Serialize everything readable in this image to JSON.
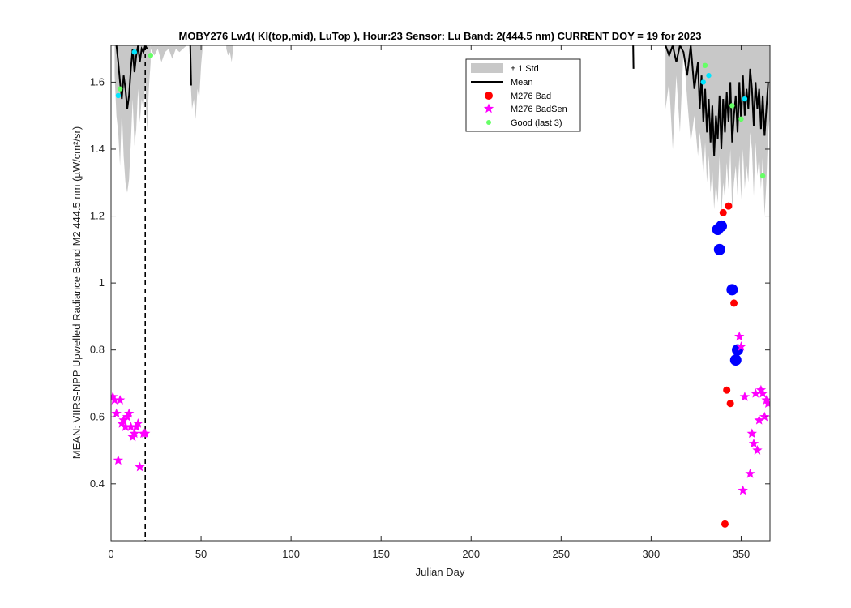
{
  "chart_data": {
    "type": "scatter",
    "title": "MOBY276   Lw1( Kl(top,mid), LuTop ),   Hour:23 Sensor: Lu Band: 2(444.5 nm)   CURRENT DOY = 19 for 2023",
    "xlabel": "Julian Day",
    "ylabel": "MEAN: VIIRS-NPP Upwelled Radiance Band M2 444.5 nm (µW/cm²/sr)",
    "xlim": [
      0,
      366
    ],
    "ylim": [
      0.23,
      1.71
    ],
    "xticks": [
      0,
      50,
      100,
      150,
      200,
      250,
      300,
      350
    ],
    "yticks": [
      0.4,
      0.6,
      0.8,
      1.0,
      1.2,
      1.4,
      1.6
    ],
    "ytick_labels": [
      "0.4",
      "0.6",
      "0.8",
      "1",
      "1.2",
      "1.4",
      "1.6"
    ],
    "current_doy": 19,
    "grid": false,
    "legend_position": "top-right",
    "legend": [
      "± 1 Std",
      "Mean",
      "M276 Bad",
      "M276 BadSen",
      "Good (last 3)"
    ],
    "colors": {
      "std_band": "#c8c8c8",
      "mean": "#000000",
      "bad": "#ff0000",
      "badsen": "#ff00ff",
      "good": "#66ff66",
      "cyan": "#00e5ff",
      "blue": "#0000ff",
      "vline": "#000000"
    },
    "series": [
      {
        "name": "± 1 Std",
        "kind": "band",
        "segments": [
          {
            "x": [
              2,
              3,
              4,
              5,
              6,
              7,
              8,
              9,
              10,
              11,
              12,
              13,
              14,
              15,
              16,
              17,
              18,
              19,
              20,
              21,
              22
            ],
            "upper": [
              1.71,
              1.71,
              1.71,
              1.71,
              1.71,
              1.71,
              1.71,
              1.71,
              1.71,
              1.71,
              1.71,
              1.71,
              1.71,
              1.71,
              1.71,
              1.71,
              1.71,
              1.71,
              1.71,
              1.71,
              1.71
            ],
            "lower": [
              1.62,
              1.5,
              1.45,
              1.35,
              1.52,
              1.38,
              1.3,
              1.27,
              1.31,
              1.42,
              1.55,
              1.41,
              1.46,
              1.58,
              1.48,
              1.55,
              1.52,
              1.6,
              1.45,
              1.58,
              1.66
            ]
          },
          {
            "x": [
              22,
              24,
              26,
              28,
              30,
              32,
              34,
              36,
              38,
              40,
              42
            ],
            "upper": [
              1.71,
              1.71,
              1.71,
              1.71,
              1.71,
              1.71,
              1.71,
              1.71,
              1.71,
              1.71,
              1.71
            ],
            "lower": [
              1.7,
              1.68,
              1.7,
              1.66,
              1.69,
              1.7,
              1.67,
              1.7,
              1.69,
              1.7,
              1.71
            ]
          },
          {
            "x": [
              44,
              45,
              46,
              47,
              48,
              49,
              50,
              51
            ],
            "upper": [
              1.71,
              1.71,
              1.71,
              1.71,
              1.71,
              1.71,
              1.71,
              1.71
            ],
            "lower": [
              1.62,
              1.52,
              1.55,
              1.49,
              1.58,
              1.55,
              1.65,
              1.71
            ]
          },
          {
            "x": [
              64,
              65,
              66,
              67,
              68
            ],
            "upper": [
              1.71,
              1.71,
              1.71,
              1.71,
              1.71
            ],
            "lower": [
              1.7,
              1.68,
              1.69,
              1.66,
              1.71
            ]
          },
          {
            "x": [
              308,
              310,
              312,
              314,
              316,
              318,
              320,
              322,
              324,
              326,
              327,
              328,
              329,
              330,
              331,
              332,
              333,
              334,
              335,
              336,
              337,
              338,
              339,
              340,
              341,
              342,
              343,
              344,
              345,
              346,
              347,
              348,
              349,
              350,
              351,
              352,
              353,
              354,
              355,
              356,
              357,
              358,
              359,
              360,
              361,
              362,
              363,
              364,
              365,
              366
            ],
            "upper": [
              1.71,
              1.71,
              1.71,
              1.71,
              1.71,
              1.71,
              1.71,
              1.71,
              1.71,
              1.71,
              1.71,
              1.71,
              1.71,
              1.71,
              1.71,
              1.71,
              1.71,
              1.71,
              1.71,
              1.71,
              1.71,
              1.71,
              1.71,
              1.71,
              1.71,
              1.71,
              1.71,
              1.71,
              1.71,
              1.71,
              1.71,
              1.71,
              1.71,
              1.71,
              1.71,
              1.71,
              1.71,
              1.71,
              1.71,
              1.71,
              1.71,
              1.71,
              1.71,
              1.71,
              1.71,
              1.71,
              1.71,
              1.71,
              1.71,
              1.71
            ],
            "lower": [
              1.52,
              1.6,
              1.4,
              1.62,
              1.45,
              1.7,
              1.55,
              1.42,
              1.5,
              1.38,
              1.45,
              1.4,
              1.32,
              1.42,
              1.3,
              1.38,
              1.27,
              1.34,
              1.22,
              1.3,
              1.24,
              1.38,
              1.2,
              1.3,
              1.25,
              1.36,
              1.28,
              1.4,
              1.22,
              1.3,
              1.35,
              1.26,
              1.38,
              1.25,
              1.4,
              1.28,
              1.35,
              1.3,
              1.45,
              1.4,
              1.26,
              1.42,
              1.32,
              1.38,
              1.28,
              1.38,
              1.2,
              1.3,
              1.45,
              1.5
            ]
          }
        ]
      },
      {
        "name": "Mean",
        "kind": "line",
        "segments": [
          {
            "x": [
              3,
              4,
              5,
              6,
              7,
              8,
              9,
              10,
              11,
              12,
              13,
              14,
              15,
              16,
              17,
              18,
              19,
              20
            ],
            "y": [
              1.71,
              1.66,
              1.6,
              1.55,
              1.62,
              1.58,
              1.52,
              1.56,
              1.64,
              1.7,
              1.63,
              1.68,
              1.71,
              1.66,
              1.7,
              1.69,
              1.71,
              1.7
            ]
          },
          {
            "x": [
              44,
              44.5
            ],
            "y": [
              1.71,
              1.59
            ]
          },
          {
            "x": [
              290,
              290.2
            ],
            "y": [
              1.71,
              1.64
            ]
          },
          {
            "x": [
              308,
              310,
              312,
              314,
              316,
              318,
              320,
              322,
              324,
              326,
              327,
              328,
              329,
              330,
              331,
              332,
              333,
              334,
              335,
              336,
              337,
              338,
              339,
              340,
              341,
              342,
              343,
              344,
              345,
              346,
              347,
              348,
              349,
              350,
              351,
              352,
              353,
              354,
              355,
              356,
              357,
              358,
              359,
              360,
              361,
              362,
              363,
              364,
              365
            ],
            "y": [
              1.71,
              1.68,
              1.71,
              1.66,
              1.71,
              1.69,
              1.62,
              1.71,
              1.58,
              1.66,
              1.52,
              1.62,
              1.48,
              1.58,
              1.45,
              1.55,
              1.42,
              1.53,
              1.38,
              1.5,
              1.43,
              1.56,
              1.4,
              1.55,
              1.45,
              1.57,
              1.48,
              1.6,
              1.42,
              1.5,
              1.56,
              1.45,
              1.6,
              1.48,
              1.62,
              1.5,
              1.58,
              1.52,
              1.64,
              1.58,
              1.47,
              1.6,
              1.52,
              1.58,
              1.46,
              1.56,
              1.44,
              1.52,
              1.6
            ]
          }
        ]
      },
      {
        "name": "M276 Bad",
        "kind": "points",
        "marker": "circle",
        "color": "bad",
        "points": [
          [
            340,
            1.21
          ],
          [
            343,
            1.23
          ],
          [
            346,
            0.94
          ],
          [
            342,
            0.68
          ],
          [
            344,
            0.64
          ],
          [
            341,
            0.28
          ]
        ]
      },
      {
        "name": "M276 BadSen",
        "kind": "points",
        "marker": "star",
        "color": "badsen",
        "points": [
          [
            1,
            0.66
          ],
          [
            2,
            0.65
          ],
          [
            3,
            0.61
          ],
          [
            4,
            0.47
          ],
          [
            5,
            0.65
          ],
          [
            6,
            0.58
          ],
          [
            7,
            0.59
          ],
          [
            8,
            0.57
          ],
          [
            9,
            0.6
          ],
          [
            10,
            0.61
          ],
          [
            11,
            0.57
          ],
          [
            12,
            0.54
          ],
          [
            13,
            0.55
          ],
          [
            14,
            0.57
          ],
          [
            15,
            0.58
          ],
          [
            16,
            0.45
          ],
          [
            18,
            0.55
          ],
          [
            19,
            0.55
          ],
          [
            349,
            0.84
          ],
          [
            350,
            0.81
          ],
          [
            351,
            0.38
          ],
          [
            352,
            0.66
          ],
          [
            355,
            0.43
          ],
          [
            356,
            0.55
          ],
          [
            357,
            0.52
          ],
          [
            358,
            0.67
          ],
          [
            359,
            0.5
          ],
          [
            360,
            0.59
          ],
          [
            361,
            0.68
          ],
          [
            362,
            0.67
          ],
          [
            363,
            0.6
          ],
          [
            364,
            0.65
          ],
          [
            365,
            0.64
          ]
        ]
      },
      {
        "name": "Good (last 3)",
        "kind": "points",
        "marker": "dot",
        "color": "good",
        "points": [
          [
            5,
            1.58
          ],
          [
            22,
            1.68
          ],
          [
            330,
            1.65
          ],
          [
            345,
            1.53
          ],
          [
            350,
            1.49
          ],
          [
            362,
            1.32
          ]
        ]
      },
      {
        "kind": "points",
        "marker": "dot",
        "color": "cyan",
        "points": [
          [
            4,
            1.56
          ],
          [
            13,
            1.69
          ],
          [
            329,
            1.6
          ],
          [
            332,
            1.62
          ],
          [
            352,
            1.55
          ]
        ]
      },
      {
        "kind": "points",
        "marker": "bigcircle",
        "color": "blue",
        "points": [
          [
            338,
            1.1
          ],
          [
            337,
            1.16
          ],
          [
            339,
            1.17
          ],
          [
            345,
            0.98
          ],
          [
            347,
            0.77
          ],
          [
            348,
            0.8
          ]
        ]
      }
    ]
  }
}
